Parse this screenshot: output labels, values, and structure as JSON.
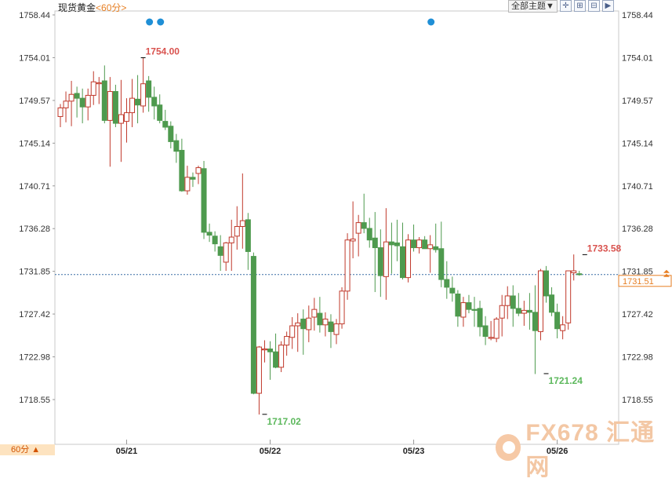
{
  "header": {
    "instrument": "现货黄金",
    "period": "<60分>",
    "theme_button": "全部主题▼",
    "period_selector": "60分 ▲"
  },
  "toolbar_icons": [
    "crosshair-icon",
    "zoom-in-icon",
    "zoom-out-icon",
    "forward-icon"
  ],
  "watermark": {
    "brand": "FX678",
    "cn": "汇通网"
  },
  "chart_data": {
    "type": "candlestick",
    "title": "现货黄金 <60分>",
    "ylim": [
      1716.0,
      1759.6
    ],
    "y_ticks": [
      "1758.44",
      "1754.01",
      "1749.57",
      "1745.14",
      "1740.71",
      "1736.28",
      "1731.85",
      "1727.42",
      "1722.98",
      "1718.55"
    ],
    "x_labels": [
      {
        "label": "05/21",
        "index": 12
      },
      {
        "label": "05/22",
        "index": 38
      },
      {
        "label": "05/23",
        "index": 64
      },
      {
        "label": "05/26",
        "index": 90
      }
    ],
    "current_price": "1731.51",
    "current_price_line": 1731.51,
    "annotations": [
      {
        "text": "1754.00",
        "index": 15,
        "value": 1754.0,
        "kind": "high"
      },
      {
        "text": "1717.02",
        "index": 37,
        "value": 1717.02,
        "kind": "low"
      },
      {
        "text": "1733.58",
        "index": 95,
        "value": 1733.58,
        "kind": "high"
      },
      {
        "text": "1721.24",
        "index": 88,
        "value": 1721.24,
        "kind": "low"
      }
    ],
    "event_markers": [
      16,
      18,
      67
    ],
    "up_color": "#c0392b",
    "down_color": "#4e9a4e",
    "candles": [
      [
        1747.9,
        1749.2,
        1746.8,
        1748.8
      ],
      [
        1748.8,
        1750.5,
        1747.3,
        1749.5
      ],
      [
        1749.5,
        1751.6,
        1746.9,
        1750.2
      ],
      [
        1750.3,
        1751.0,
        1747.8,
        1749.8
      ],
      [
        1749.8,
        1750.8,
        1747.2,
        1748.9
      ],
      [
        1748.9,
        1750.8,
        1747.5,
        1750.1
      ],
      [
        1750.1,
        1752.6,
        1749.1,
        1751.5
      ],
      [
        1751.3,
        1752.0,
        1749.2,
        1751.4
      ],
      [
        1751.6,
        1753.2,
        1747.2,
        1747.5
      ],
      [
        1747.5,
        1752.0,
        1742.7,
        1750.5
      ],
      [
        1750.5,
        1751.2,
        1746.8,
        1747.2
      ],
      [
        1747.2,
        1751.7,
        1743.2,
        1748.1
      ],
      [
        1747.4,
        1749.8,
        1745.2,
        1748.3
      ],
      [
        1748.3,
        1751.8,
        1746.8,
        1749.8
      ],
      [
        1749.7,
        1752.2,
        1747.2,
        1749.1
      ],
      [
        1749.0,
        1754.0,
        1748.3,
        1751.3
      ],
      [
        1751.6,
        1752.1,
        1748.4,
        1749.9
      ],
      [
        1749.9,
        1751.0,
        1747.6,
        1749.0
      ],
      [
        1749.1,
        1750.2,
        1747.2,
        1747.5
      ],
      [
        1747.4,
        1748.6,
        1746.5,
        1746.8
      ],
      [
        1746.9,
        1747.4,
        1744.6,
        1745.3
      ],
      [
        1745.4,
        1746.1,
        1743.1,
        1744.3
      ],
      [
        1744.4,
        1745.6,
        1740.1,
        1740.2
      ],
      [
        1740.2,
        1742.8,
        1739.8,
        1741.6
      ],
      [
        1741.6,
        1742.1,
        1740.6,
        1741.4
      ],
      [
        1742.0,
        1742.8,
        1740.9,
        1742.6
      ],
      [
        1742.5,
        1743.3,
        1735.2,
        1735.9
      ],
      [
        1735.9,
        1736.8,
        1734.9,
        1735.6
      ],
      [
        1735.5,
        1736.0,
        1733.9,
        1734.7
      ],
      [
        1734.4,
        1735.6,
        1731.9,
        1733.5
      ],
      [
        1732.8,
        1734.9,
        1731.9,
        1734.8
      ],
      [
        1734.8,
        1737.2,
        1731.9,
        1735.4
      ],
      [
        1735.5,
        1738.6,
        1734.1,
        1736.5
      ],
      [
        1736.5,
        1742.0,
        1734.2,
        1737.1
      ],
      [
        1737.2,
        1737.9,
        1732.0,
        1733.9
      ],
      [
        1733.4,
        1733.8,
        1719.1,
        1719.2
      ],
      [
        1719.2,
        1724.1,
        1717.0,
        1724.0
      ],
      [
        1723.7,
        1724.7,
        1722.4,
        1723.8
      ],
      [
        1723.8,
        1724.6,
        1720.6,
        1723.5
      ],
      [
        1723.5,
        1725.4,
        1721.8,
        1721.9
      ],
      [
        1721.9,
        1724.6,
        1721.4,
        1724.2
      ],
      [
        1724.2,
        1725.6,
        1723.1,
        1725.1
      ],
      [
        1725.0,
        1727.1,
        1723.8,
        1726.2
      ],
      [
        1726.2,
        1727.5,
        1723.5,
        1726.5
      ],
      [
        1726.9,
        1727.9,
        1723.2,
        1725.9
      ],
      [
        1725.8,
        1728.3,
        1724.5,
        1727.0
      ],
      [
        1727.1,
        1729.1,
        1725.7,
        1727.9
      ],
      [
        1727.5,
        1729.2,
        1725.5,
        1726.3
      ],
      [
        1726.3,
        1727.6,
        1725.1,
        1726.9
      ],
      [
        1726.6,
        1727.4,
        1723.9,
        1725.6
      ],
      [
        1725.3,
        1726.9,
        1724.3,
        1726.4
      ],
      [
        1726.4,
        1730.2,
        1725.9,
        1729.8
      ],
      [
        1729.8,
        1735.8,
        1728.9,
        1735.1
      ],
      [
        1735.0,
        1739.1,
        1733.2,
        1735.2
      ],
      [
        1735.8,
        1737.7,
        1733.4,
        1736.9
      ],
      [
        1736.9,
        1739.9,
        1735.8,
        1736.3
      ],
      [
        1736.3,
        1737.4,
        1734.3,
        1735.1
      ],
      [
        1735.3,
        1738.0,
        1729.7,
        1734.3
      ],
      [
        1734.3,
        1736.2,
        1729.2,
        1731.4
      ],
      [
        1731.3,
        1738.4,
        1728.9,
        1734.9
      ],
      [
        1734.9,
        1736.9,
        1731.6,
        1734.6
      ],
      [
        1734.8,
        1737.2,
        1732.9,
        1734.5
      ],
      [
        1734.4,
        1736.9,
        1731.0,
        1731.2
      ],
      [
        1731.2,
        1735.7,
        1730.7,
        1735.1
      ],
      [
        1735.1,
        1736.7,
        1733.9,
        1734.3
      ],
      [
        1734.3,
        1735.4,
        1733.7,
        1735.1
      ],
      [
        1735.1,
        1735.5,
        1734.5,
        1734.2
      ],
      [
        1734.2,
        1735.6,
        1731.7,
        1734.6
      ],
      [
        1734.4,
        1736.8,
        1733.8,
        1734.1
      ],
      [
        1734.2,
        1737.0,
        1730.2,
        1731.0
      ],
      [
        1731.0,
        1732.9,
        1729.0,
        1730.2
      ],
      [
        1730.1,
        1731.3,
        1728.7,
        1729.6
      ],
      [
        1729.5,
        1729.9,
        1726.1,
        1727.2
      ],
      [
        1727.1,
        1729.2,
        1726.1,
        1728.6
      ],
      [
        1728.6,
        1729.4,
        1727.5,
        1727.9
      ],
      [
        1727.9,
        1729.2,
        1726.1,
        1727.8
      ],
      [
        1728.0,
        1728.8,
        1725.1,
        1726.1
      ],
      [
        1726.2,
        1727.2,
        1724.2,
        1725.1
      ],
      [
        1724.9,
        1726.7,
        1724.7,
        1725.0
      ],
      [
        1724.9,
        1727.1,
        1724.5,
        1726.9
      ],
      [
        1727.0,
        1729.4,
        1725.1,
        1728.3
      ],
      [
        1728.3,
        1730.3,
        1726.9,
        1729.3
      ],
      [
        1729.3,
        1730.4,
        1726.1,
        1728.0
      ],
      [
        1728.0,
        1729.6,
        1727.2,
        1727.5
      ],
      [
        1727.5,
        1728.8,
        1726.2,
        1727.8
      ],
      [
        1727.8,
        1729.6,
        1725.8,
        1727.6
      ],
      [
        1727.6,
        1730.4,
        1721.2,
        1725.7
      ],
      [
        1725.6,
        1732.1,
        1724.7,
        1731.9
      ],
      [
        1731.9,
        1732.4,
        1728.6,
        1729.3
      ],
      [
        1729.4,
        1730.2,
        1727.2,
        1727.6
      ],
      [
        1727.6,
        1728.5,
        1724.9,
        1725.9
      ],
      [
        1725.7,
        1727.2,
        1724.8,
        1726.3
      ],
      [
        1726.5,
        1731.9,
        1725.8,
        1731.9
      ],
      [
        1731.7,
        1733.6,
        1730.9,
        1731.9
      ],
      [
        1731.6,
        1731.9,
        1731.4,
        1731.5
      ]
    ]
  }
}
